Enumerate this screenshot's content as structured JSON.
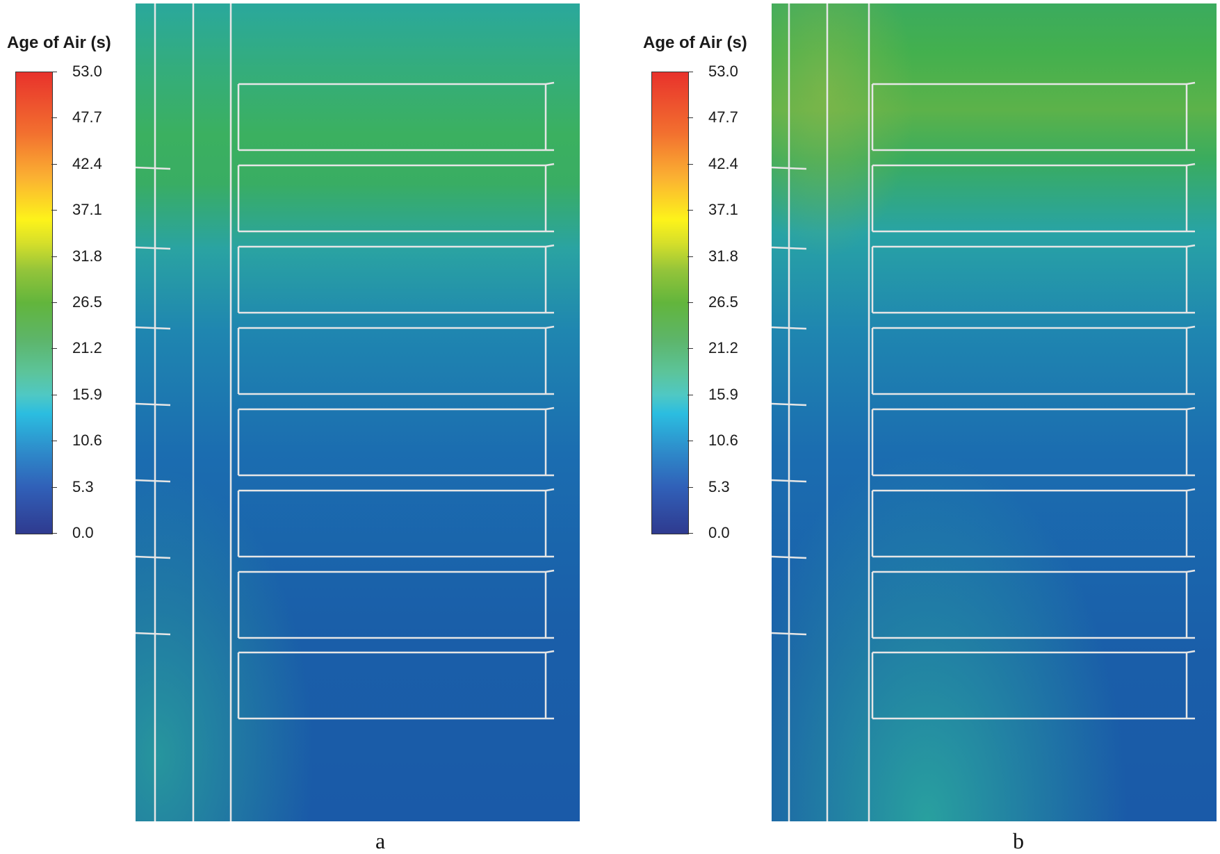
{
  "legend_title": "Age of Air (s)",
  "colorbar": {
    "min": 0.0,
    "max": 53.0,
    "ticks": [
      "53.0",
      "47.7",
      "42.4",
      "37.1",
      "31.8",
      "26.5",
      "21.2",
      "15.9",
      "10.6",
      "5.3",
      "0.0"
    ]
  },
  "panels": [
    {
      "id": "a",
      "caption": "a"
    },
    {
      "id": "b",
      "caption": "b"
    }
  ],
  "colors": {
    "low": "#1a5aa8",
    "mid": "#2aa6a0",
    "high": "#4cae48",
    "structure_line": "#e6e6e6"
  }
}
